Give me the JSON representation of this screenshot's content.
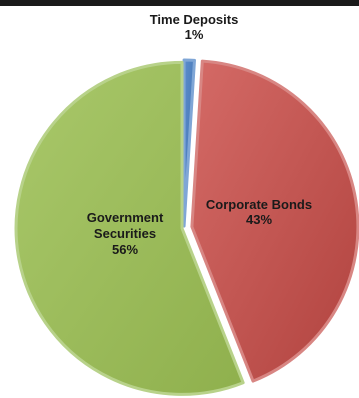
{
  "chart_data": {
    "type": "pie",
    "title": "",
    "start_angle_deg": 0,
    "direction": "clockwise",
    "exploded": true,
    "slices": [
      {
        "name": "Time Deposits",
        "value": 1,
        "label_lines": [
          "Time Deposits",
          "1%"
        ],
        "color": "#4a7ebb"
      },
      {
        "name": "Corporate Bonds",
        "value": 43,
        "label_lines": [
          "Corporate Bonds",
          "43%"
        ],
        "color": "#c0504d"
      },
      {
        "name": "Government Securities",
        "value": 56,
        "label_lines": [
          "Government",
          "Securities",
          "56%"
        ],
        "color": "#9bbb59"
      }
    ],
    "legend": "none"
  }
}
